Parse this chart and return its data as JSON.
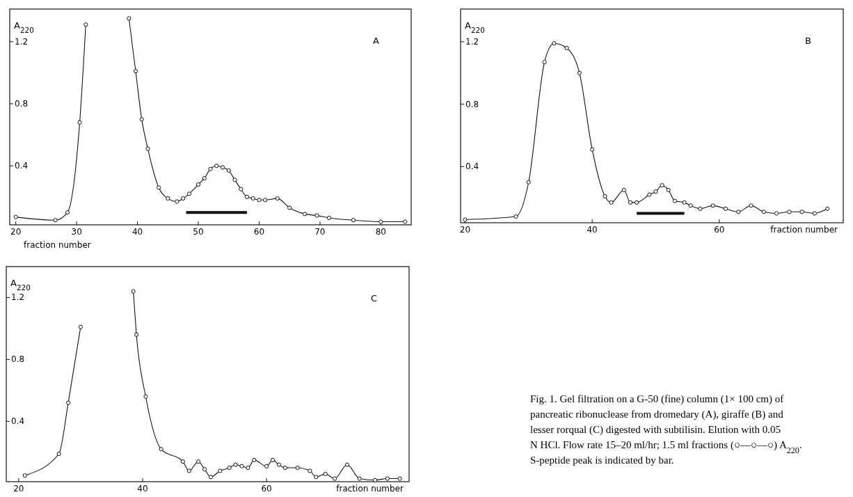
{
  "chart_data": [
    {
      "type": "line",
      "xlabel": "fraction number",
      "ylabel": "A$_{220}$",
      "annotations": [
        "A"
      ],
      "xlim": [
        19,
        85
      ],
      "ylim": [
        0.02,
        1.41
      ],
      "xticks": [
        20,
        30,
        40,
        50,
        60,
        70,
        80
      ],
      "yticks": [
        0.4,
        0.8,
        1.2
      ],
      "marker": "circle",
      "series": [
        {
          "color": "#111111",
          "x": [
            20,
            26.5,
            28.5,
            30.5,
            31.5,
            31.8,
            38.3,
            38.6,
            39.7,
            40.7,
            41.7,
            43.5,
            45,
            46.5,
            47.5,
            48.5,
            50,
            51,
            52,
            53,
            54,
            55,
            56,
            57,
            58,
            59,
            60,
            61,
            63,
            65,
            67.5,
            69.5,
            71.5,
            75.5,
            80,
            84
          ],
          "values": [
            0.07,
            0.05,
            0.1,
            0.68,
            1.31,
            null,
            null,
            1.35,
            1.01,
            0.7,
            0.51,
            0.26,
            0.19,
            0.17,
            0.19,
            0.22,
            0.28,
            0.32,
            0.38,
            0.4,
            0.39,
            0.37,
            0.31,
            0.25,
            0.2,
            0.19,
            0.18,
            0.18,
            0.19,
            0.13,
            0.09,
            0.08,
            0.065,
            0.05,
            0.04,
            0.04
          ]
        },
        {
          "color": "#111111",
          "marker": "none",
          "x": [
            48,
            58
          ],
          "values": [
            0.1,
            0.1
          ]
        }
      ]
    },
    {
      "type": "line",
      "xlabel": "fraction number",
      "ylabel": "A$_{220}$",
      "annotations": [
        "B"
      ],
      "xlim": [
        19.3,
        79.5
      ],
      "ylim": [
        0.04,
        1.41
      ],
      "xticks": [
        20,
        40,
        60
      ],
      "yticks": [
        0.4,
        0.8,
        1.2
      ],
      "marker": "circle",
      "series": [
        {
          "color": "#111111",
          "x": [
            20,
            28,
            30,
            32.5,
            34,
            36,
            38,
            40,
            42,
            43,
            45,
            46,
            47,
            49,
            50,
            51,
            52,
            53,
            54.5,
            55.5,
            57,
            59,
            61,
            63,
            65,
            67,
            69,
            71,
            73,
            75,
            77
          ],
          "values": [
            0.06,
            0.08,
            0.3,
            1.07,
            1.19,
            1.16,
            1.0,
            0.51,
            0.21,
            0.17,
            0.25,
            0.17,
            0.17,
            0.22,
            0.24,
            0.28,
            0.25,
            0.18,
            0.17,
            0.15,
            0.13,
            0.15,
            0.13,
            0.11,
            0.15,
            0.11,
            0.1,
            0.11,
            0.11,
            0.1,
            0.13
          ]
        },
        {
          "color": "#111111",
          "marker": "none",
          "x": [
            47,
            54.5
          ],
          "values": [
            0.1,
            0.1
          ]
        }
      ]
    },
    {
      "type": "line",
      "xlabel": "fraction number",
      "ylabel": "A$_{220}$",
      "annotations": [
        "C"
      ],
      "xlim": [
        18,
        83
      ],
      "ylim": [
        0.01,
        1.4
      ],
      "xticks": [
        20,
        40,
        60
      ],
      "yticks": [
        0.4,
        0.8,
        1.2
      ],
      "marker": "circle",
      "series": [
        {
          "color": "#111111",
          "x": [
            21,
            26.5,
            28,
            30,
            31.6,
            38.1,
            38.5,
            39,
            40.5,
            43,
            46.5,
            47.5,
            49,
            50,
            51,
            52.5,
            54,
            55,
            56,
            57,
            58,
            60,
            61,
            62,
            63,
            65,
            67,
            68,
            69.5,
            71,
            73,
            75,
            77.5,
            79.5,
            81.5
          ],
          "values": [
            0.05,
            0.19,
            0.52,
            1.01,
            null,
            null,
            1.24,
            0.96,
            0.56,
            0.22,
            0.14,
            0.08,
            0.14,
            0.09,
            0.04,
            0.08,
            0.1,
            0.12,
            0.11,
            0.1,
            0.15,
            0.11,
            0.15,
            0.12,
            0.1,
            0.1,
            0.08,
            0.04,
            0.06,
            0.03,
            0.12,
            0.03,
            0.02,
            0.03,
            0.03
          ]
        }
      ]
    },
    {
      "type": "other",
      "annotations": [
        "Fig. 1. Gel filtration on a G-50 (fine) column (1× 100 cm) of pancreatic ribonuclease from dromedary (A), giraffe (B) and lesser rorqual (C) digested with subtilisin. Elution with 0.05 N HCl. Flow rate 15–20 ml/hr; 1.5 ml fractions (○—○—○) A$_{220}$. S-peptide peak is indicated by bar."
      ]
    }
  ]
}
